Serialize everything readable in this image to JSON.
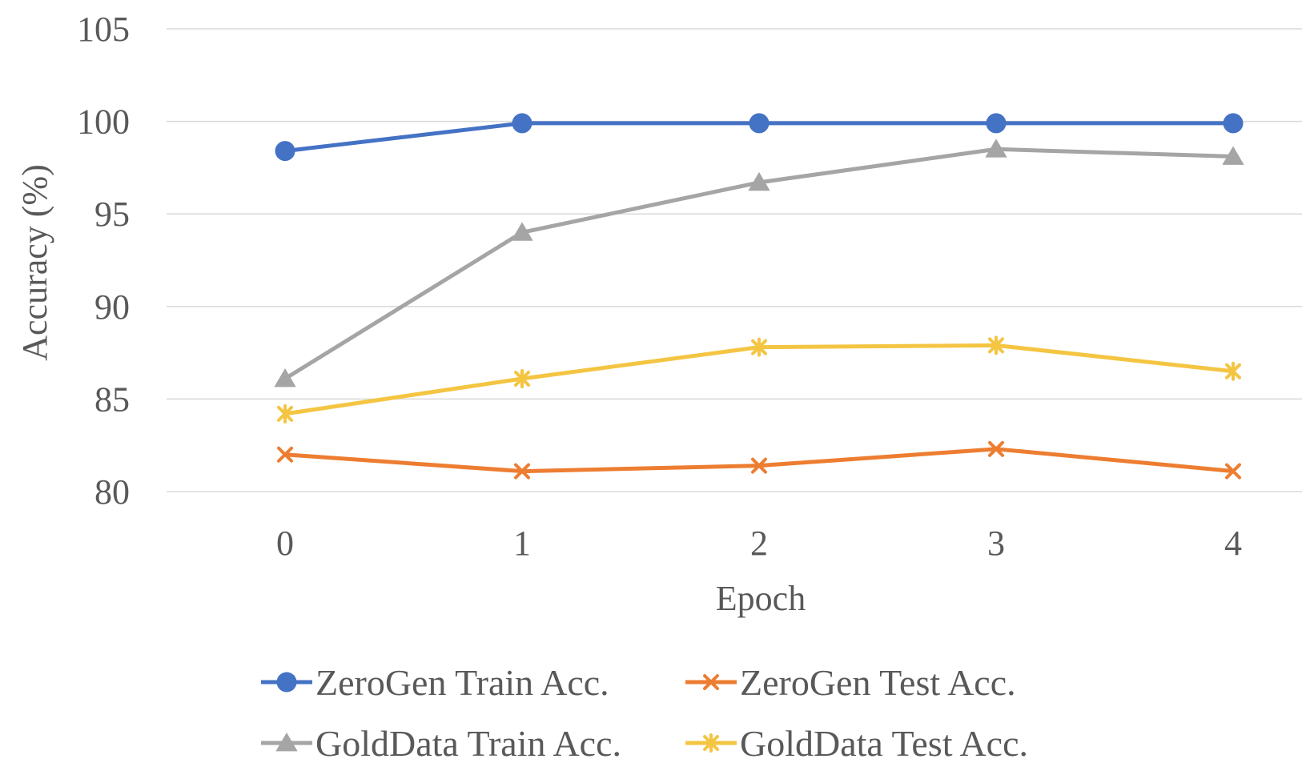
{
  "chart_data": {
    "type": "line",
    "title": "",
    "xlabel": "Epoch",
    "ylabel": "Accuracy (%)",
    "x": [
      0,
      1,
      2,
      3,
      4
    ],
    "x_tick_labels": [
      "0",
      "1",
      "2",
      "3",
      "4"
    ],
    "ylim": [
      80,
      105
    ],
    "y_ticks": [
      80,
      85,
      90,
      95,
      100,
      105
    ],
    "grid": true,
    "legend_position": "bottom",
    "series": [
      {
        "name": "ZeroGen Train Acc.",
        "values": [
          98.4,
          99.9,
          99.9,
          99.9,
          99.9
        ],
        "color": "#4472c4",
        "marker": "circle"
      },
      {
        "name": "ZeroGen Test Acc.",
        "values": [
          82.0,
          81.1,
          81.4,
          82.3,
          81.1
        ],
        "color": "#ed7d31",
        "marker": "x"
      },
      {
        "name": "GoldData Train Acc.",
        "values": [
          86.1,
          94.0,
          96.7,
          98.5,
          98.1
        ],
        "color": "#a5a5a5",
        "marker": "triangle"
      },
      {
        "name": "GoldData Test Acc.",
        "values": [
          84.2,
          86.1,
          87.8,
          87.9,
          86.5
        ],
        "color": "#f4c542",
        "marker": "star"
      }
    ]
  }
}
